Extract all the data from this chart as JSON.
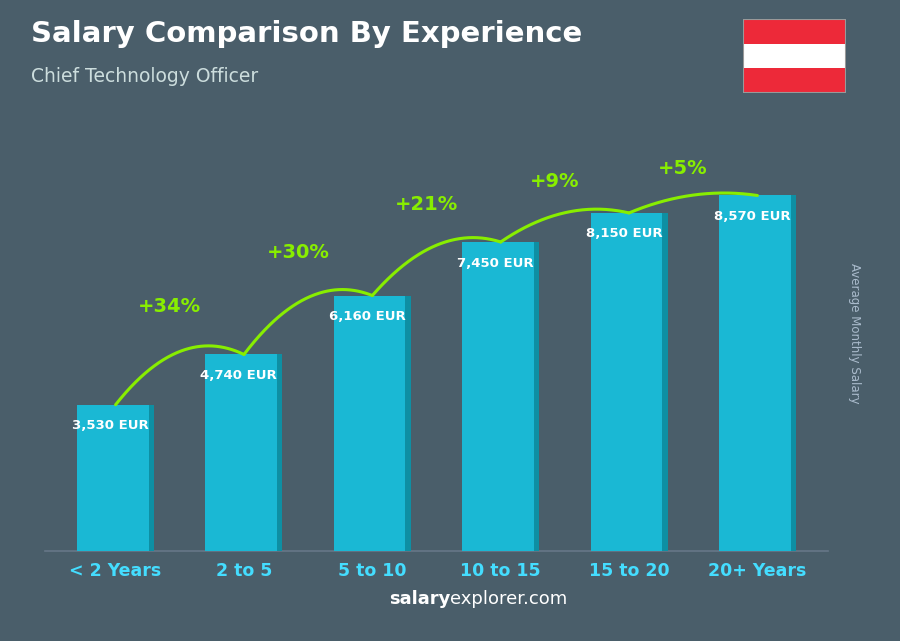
{
  "title": "Salary Comparison By Experience",
  "subtitle": "Chief Technology Officer",
  "categories": [
    "< 2 Years",
    "2 to 5",
    "5 to 10",
    "10 to 15",
    "15 to 20",
    "20+ Years"
  ],
  "values": [
    3530,
    4740,
    6160,
    7450,
    8150,
    8570
  ],
  "value_labels": [
    "3,530 EUR",
    "4,740 EUR",
    "6,160 EUR",
    "7,450 EUR",
    "8,150 EUR",
    "8,570 EUR"
  ],
  "pct_changes": [
    null,
    "+34%",
    "+30%",
    "+21%",
    "+9%",
    "+5%"
  ],
  "bar_color": "#1ab8d4",
  "bar_color_dark": "#0e8fa3",
  "bar_color_darker": "#0a6a7a",
  "pct_color": "#88ee00",
  "bg_color": "#4a5e6a",
  "title_color": "#ffffff",
  "subtitle_color": "#ccdddd",
  "label_color": "#ffffff",
  "xtick_color": "#44ddff",
  "ylabel_text": "Average Monthly Salary",
  "footer_salary": "salary",
  "footer_rest": "explorer.com",
  "ylim": [
    0,
    10500
  ],
  "figsize": [
    9.0,
    6.41
  ],
  "dpi": 100,
  "austria_flag_colors": [
    "#ed2939",
    "#ffffff",
    "#ed2939"
  ]
}
